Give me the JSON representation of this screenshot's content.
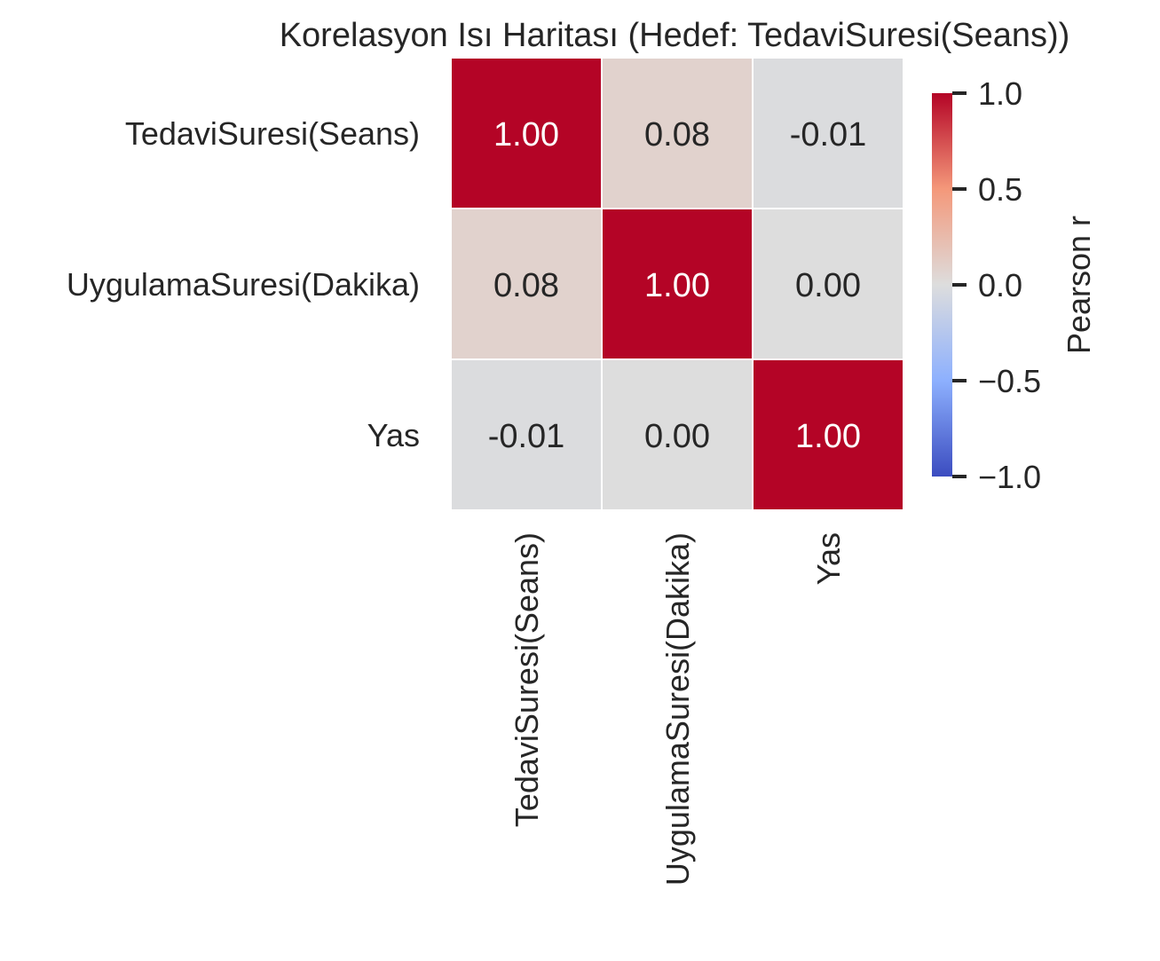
{
  "chart_data": {
    "type": "heatmap",
    "title": "Korelasyon Isı Haritası (Hedef: TedaviSuresi(Seans))",
    "row_labels": [
      "TedaviSuresi(Seans)",
      "UygulamaSuresi(Dakika)",
      "Yas"
    ],
    "col_labels": [
      "TedaviSuresi(Seans)",
      "UygulamaSuresi(Dakika)",
      "Yas"
    ],
    "values": [
      [
        1.0,
        0.08,
        -0.01
      ],
      [
        0.08,
        1.0,
        0.0
      ],
      [
        -0.01,
        0.0,
        1.0
      ]
    ],
    "cell_labels": [
      [
        "1.00",
        "0.08",
        "-0.01"
      ],
      [
        "0.08",
        "1.00",
        "0.00"
      ],
      [
        "-0.01",
        "0.00",
        "1.00"
      ]
    ],
    "colormap": "coolwarm",
    "vmin": -1.0,
    "vmax": 1.0,
    "colorbar": {
      "label": "Pearson r",
      "ticks": [
        1.0,
        0.5,
        0.0,
        -0.5,
        -1.0
      ],
      "tick_labels": [
        "1.0",
        "0.5",
        "0.0",
        "−0.5",
        "−1.0"
      ]
    }
  }
}
